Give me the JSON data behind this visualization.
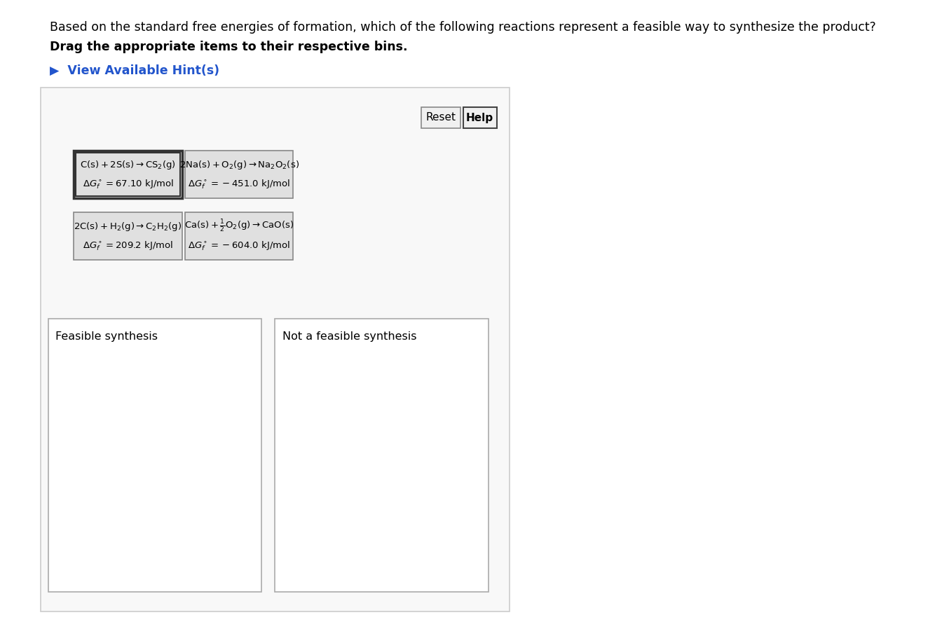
{
  "title_line1": "Based on the standard free energies of formation, which of the following reactions represent a feasible way to synthesize the product?",
  "title_line2": "Drag the appropriate items to their respective bins.",
  "hint_text": "▶  View Available Hint(s)",
  "hint_color": "#2255cc",
  "background_color": "#f5f5f5",
  "outer_bg": "#e8e8e8",
  "card_bg": "#e0e0e0",
  "card_border": "#888888",
  "selected_border": "#333333",
  "bin_bg": "#ffffff",
  "bin_border": "#aaaaaa",
  "reset_label": "Reset",
  "help_label": "Help",
  "reactions": [
    {
      "line1": "$\\mathrm{C(s) + 2S(s) {\\rightarrow} CS_2(g)}$",
      "line2": "$\\Delta G_f^\\circ = 67.10 \\ \\mathrm{kJ/mol}$",
      "selected": true,
      "col": 0,
      "row": 0
    },
    {
      "line1": "$\\mathrm{2Na(s) + O_2(g) {\\rightarrow} Na_2O_2(s)}$",
      "line2": "$\\Delta G_f^\\circ = -451.0 \\ \\mathrm{kJ/mol}$",
      "selected": false,
      "col": 1,
      "row": 0
    },
    {
      "line1": "$\\mathrm{2C(s) + H_2(g) {\\rightarrow} C_2H_2(g)}$",
      "line2": "$\\Delta G_f^\\circ = 209.2 \\ \\mathrm{kJ/mol}$",
      "selected": false,
      "col": 0,
      "row": 1
    },
    {
      "line1": "$\\mathrm{Ca(s) + \\frac{1}{2}O_2(g) {\\rightarrow} CaO(s)}$",
      "line2": "$\\Delta G_f^\\circ = -604.0 \\ \\mathrm{kJ/mol}$",
      "selected": false,
      "col": 1,
      "row": 1
    }
  ],
  "bins": [
    {
      "label": "Feasible synthesis",
      "col": 0
    },
    {
      "label": "Not a feasible synthesis",
      "col": 1
    }
  ]
}
